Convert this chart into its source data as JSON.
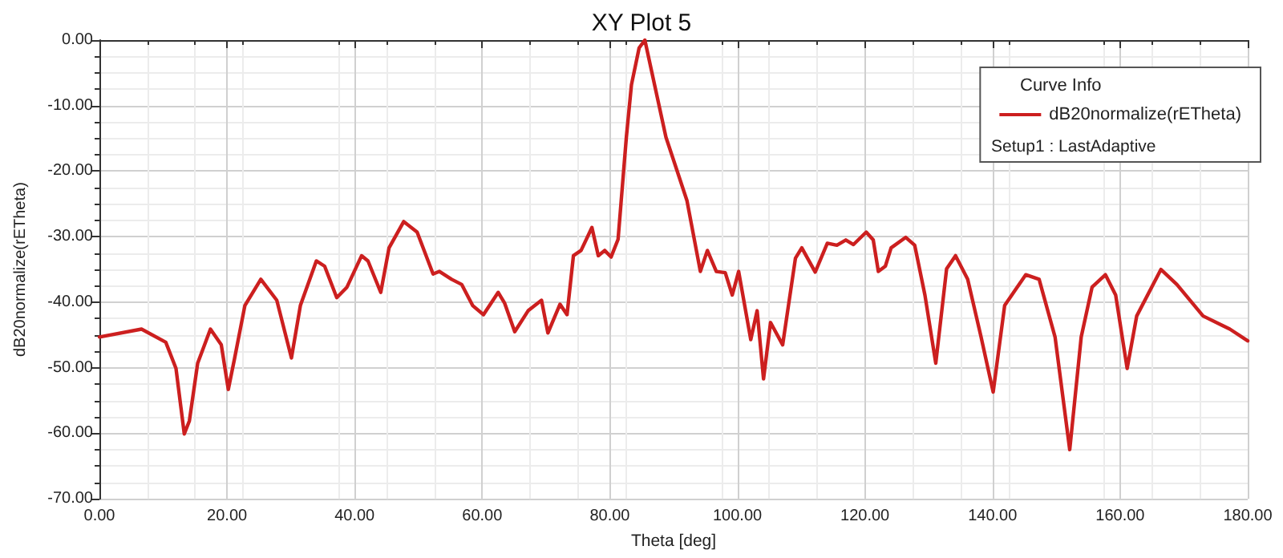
{
  "chart_data": {
    "type": "line",
    "title": "XY Plot 5",
    "xlabel": "Theta [deg]",
    "ylabel": "dB20normalize(rETheta)",
    "legend_title": "Curve Info",
    "annotations": [
      "Setup1 : LastAdaptive"
    ],
    "xlim": [
      0,
      180
    ],
    "xticks": [
      {
        "value": 0,
        "label": "0.00"
      },
      {
        "value": 20,
        "label": "20.00"
      },
      {
        "value": 40,
        "label": "40.00"
      },
      {
        "value": 60,
        "label": "60.00"
      },
      {
        "value": 80,
        "label": "80.00"
      },
      {
        "value": 100,
        "label": "100.00"
      },
      {
        "value": 120,
        "label": "120.00"
      },
      {
        "value": 140,
        "label": "140.00"
      },
      {
        "value": 160,
        "label": "160.00"
      },
      {
        "value": 180,
        "label": "180.00"
      }
    ],
    "ylim": [
      -70,
      0
    ],
    "yticks": [
      {
        "value": -70,
        "label": "-70.00"
      },
      {
        "value": -60,
        "label": "-60.00"
      },
      {
        "value": -50,
        "label": "-50.00"
      },
      {
        "value": -40,
        "label": "-40.00"
      },
      {
        "value": -30,
        "label": "-30.00"
      },
      {
        "value": -20,
        "label": "-20.00"
      },
      {
        "value": -10,
        "label": "-10.00"
      },
      {
        "value": 0,
        "label": "0.00"
      }
    ],
    "grid": true,
    "legend": "top right",
    "marker": "none",
    "line_style": "solid",
    "series": [
      {
        "name": "dB20normalize(rETheta)",
        "color": "#cc1f1f",
        "x": [
          0,
          6.6,
          10.4,
          12.0,
          13.3,
          14.1,
          15.4,
          17.4,
          19.1,
          20.2,
          21.2,
          22.8,
          25.3,
          27.8,
          30.1,
          31.5,
          34.0,
          35.3,
          37.2,
          38.8,
          41.1,
          42.1,
          44.1,
          45.4,
          47.7,
          49.8,
          52.3,
          53.3,
          55.2,
          56.8,
          58.5,
          60.2,
          62.5,
          63.5,
          65.1,
          67.2,
          69.3,
          70.3,
          72.2,
          73.3,
          74.3,
          75.5,
          77.2,
          78.2,
          79.2,
          80.2,
          81.3,
          82.6,
          83.4,
          84.6,
          85.5,
          88.8,
          92.1,
          94.2,
          95.3,
          96.7,
          98.1,
          99.2,
          100.2,
          102.1,
          103.1,
          104.1,
          105.2,
          107.1,
          109.1,
          110.1,
          112.2,
          114.1,
          115.6,
          117.0,
          118.2,
          120.2,
          121.3,
          122.1,
          123.2,
          124.1,
          126.4,
          127.8,
          129.4,
          131.1,
          132.8,
          134.2,
          136.1,
          138.2,
          140.1,
          141.9,
          145.2,
          147.3,
          149.8,
          152.1,
          153.9,
          155.6,
          157.7,
          159.3,
          161.1,
          162.6,
          166.4,
          168.9,
          173.0,
          177.2,
          180
        ],
        "values": [
          -45.3,
          -44.1,
          -46.1,
          -50.1,
          -60.1,
          -58.1,
          -49.3,
          -44.1,
          -46.5,
          -53.3,
          -48.5,
          -40.5,
          -36.5,
          -39.7,
          -48.5,
          -40.5,
          -33.7,
          -34.5,
          -39.3,
          -37.7,
          -32.9,
          -33.7,
          -38.5,
          -31.7,
          -27.7,
          -29.3,
          -35.7,
          -35.3,
          -36.5,
          -37.3,
          -40.5,
          -41.9,
          -38.5,
          -40.1,
          -44.5,
          -41.3,
          -39.7,
          -44.7,
          -40.3,
          -41.9,
          -32.9,
          -32.1,
          -28.6,
          -32.9,
          -32.1,
          -33.1,
          -30.4,
          -14.8,
          -6.8,
          -1.2,
          0,
          -14.8,
          -24.5,
          -35.3,
          -32.1,
          -35.3,
          -35.5,
          -38.9,
          -35.3,
          -45.7,
          -41.3,
          -51.7,
          -43.1,
          -46.5,
          -33.3,
          -31.7,
          -35.4,
          -31.0,
          -31.3,
          -30.5,
          -31.2,
          -29.3,
          -30.5,
          -35.3,
          -34.5,
          -31.7,
          -30.1,
          -31.3,
          -38.9,
          -49.3,
          -34.9,
          -32.9,
          -36.5,
          -45.3,
          -53.7,
          -40.5,
          -35.8,
          -36.5,
          -45.3,
          -62.5,
          -45.3,
          -37.7,
          -35.8,
          -38.9,
          -50.1,
          -42.1,
          -35.0,
          -37.3,
          -42.1,
          -44.1,
          -45.9
        ]
      }
    ]
  }
}
